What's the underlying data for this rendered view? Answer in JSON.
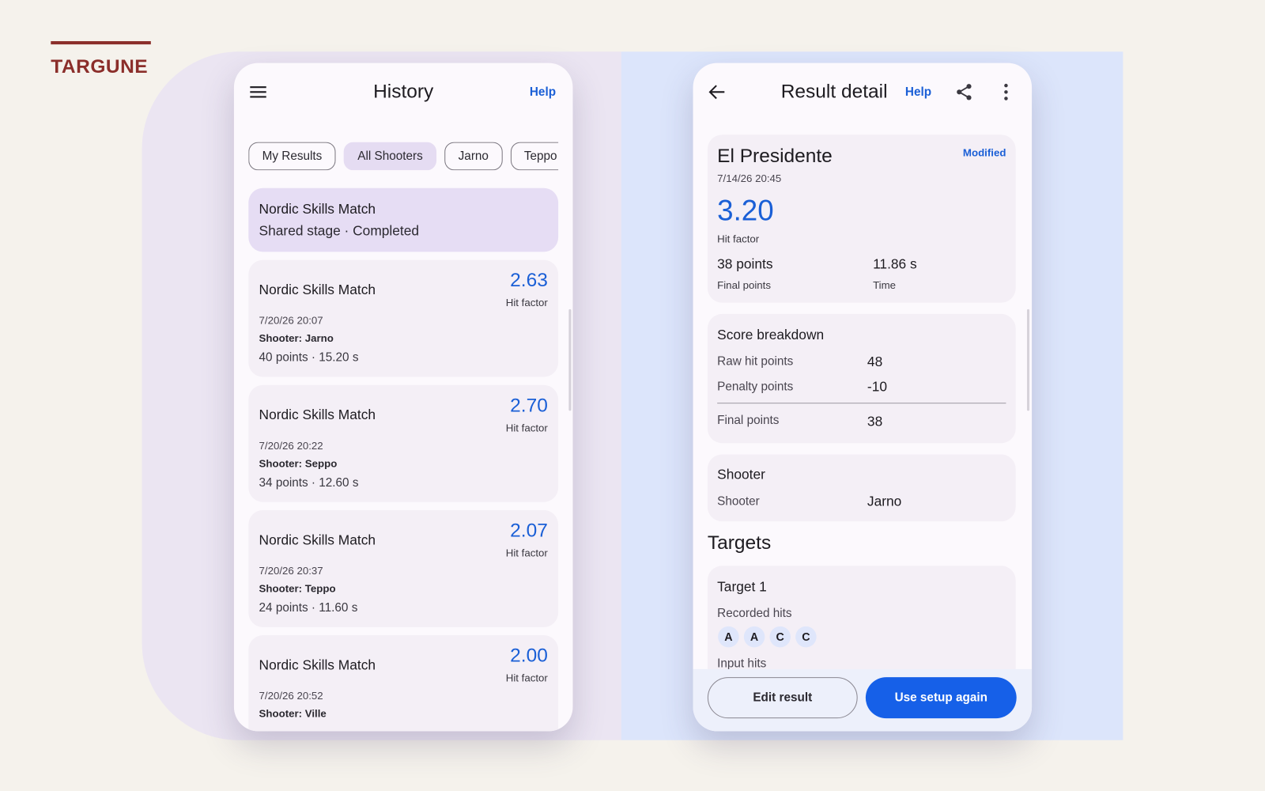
{
  "brand": "TARGUNE",
  "history": {
    "title": "History",
    "help": "Help",
    "filters": [
      "My Results",
      "All Shooters",
      "Jarno",
      "Teppo"
    ],
    "active_card": {
      "title": "Nordic Skills Match",
      "subtitle": "Shared stage · Completed"
    },
    "results": [
      {
        "title": "Nordic Skills Match",
        "hit_factor": "2.63",
        "hit_factor_label": "Hit factor",
        "date": "7/20/26 20:07",
        "shooter": "Shooter: Jarno",
        "summary": "40 points · 15.20 s"
      },
      {
        "title": "Nordic Skills Match",
        "hit_factor": "2.70",
        "hit_factor_label": "Hit factor",
        "date": "7/20/26 20:22",
        "shooter": "Shooter: Seppo",
        "summary": "34 points · 12.60 s"
      },
      {
        "title": "Nordic Skills Match",
        "hit_factor": "2.07",
        "hit_factor_label": "Hit factor",
        "date": "7/20/26 20:37",
        "shooter": "Shooter: Teppo",
        "summary": "24 points · 11.60 s"
      },
      {
        "title": "Nordic Skills Match",
        "hit_factor": "2.00",
        "hit_factor_label": "Hit factor",
        "date": "7/20/26 20:52",
        "shooter": "Shooter: Ville"
      }
    ]
  },
  "detail": {
    "title": "Result detail",
    "help": "Help",
    "summary": {
      "stage": "El Presidente",
      "status": "Modified",
      "date": "7/14/26 20:45",
      "hit_factor": "3.20",
      "hit_factor_label": "Hit factor",
      "points": "38 points",
      "points_label": "Final points",
      "time": "11.86 s",
      "time_label": "Time"
    },
    "breakdown": {
      "title": "Score breakdown",
      "rows": [
        {
          "label": "Raw hit points",
          "value": "48"
        },
        {
          "label": "Penalty points",
          "value": "-10"
        }
      ],
      "total": {
        "label": "Final points",
        "value": "38"
      }
    },
    "shooter": {
      "title": "Shooter",
      "label": "Shooter",
      "value": "Jarno"
    },
    "targets_heading": "Targets",
    "target": {
      "title": "Target 1",
      "recorded_label": "Recorded hits",
      "hits": [
        "A",
        "A",
        "C",
        "C"
      ],
      "input_label": "Input hits"
    },
    "buttons": {
      "edit": "Edit result",
      "reuse": "Use setup again"
    }
  }
}
